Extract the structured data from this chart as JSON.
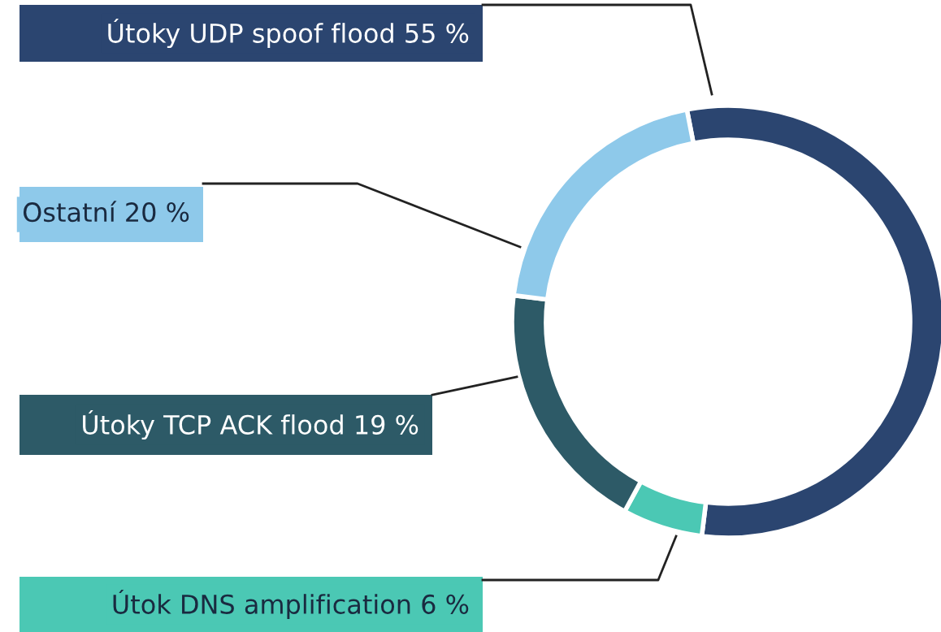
{
  "chart_data": {
    "type": "donut",
    "categories": [
      "Útoky UDP spoof flood",
      "Útok DNS amplification",
      "Útoky TCP ACK flood",
      "Ostatní"
    ],
    "values": [
      55,
      6,
      19,
      20
    ],
    "value_labels": [
      "55 %",
      "6 %",
      "19 %",
      "20 %"
    ],
    "colors": [
      "#2b4570",
      "#4bc8b4",
      "#2d5a67",
      "#8ec9ea"
    ],
    "legend": false
  }
}
